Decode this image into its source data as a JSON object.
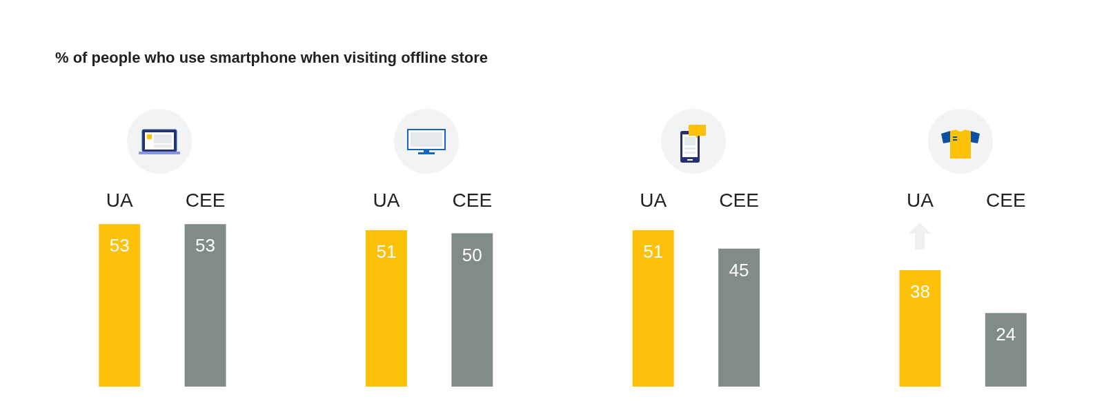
{
  "chart_data": {
    "type": "bar",
    "title": "% of people who use smartphone when visiting offline store",
    "categories": [
      null,
      null,
      null,
      null
    ],
    "series": [
      {
        "name": "UA",
        "color": "#fdc10a",
        "values": [
          53,
          51,
          51,
          38
        ]
      },
      {
        "name": "CEE",
        "color": "#818b8a",
        "values": [
          53,
          50,
          45,
          24
        ]
      }
    ],
    "data_labels": true
  }
}
